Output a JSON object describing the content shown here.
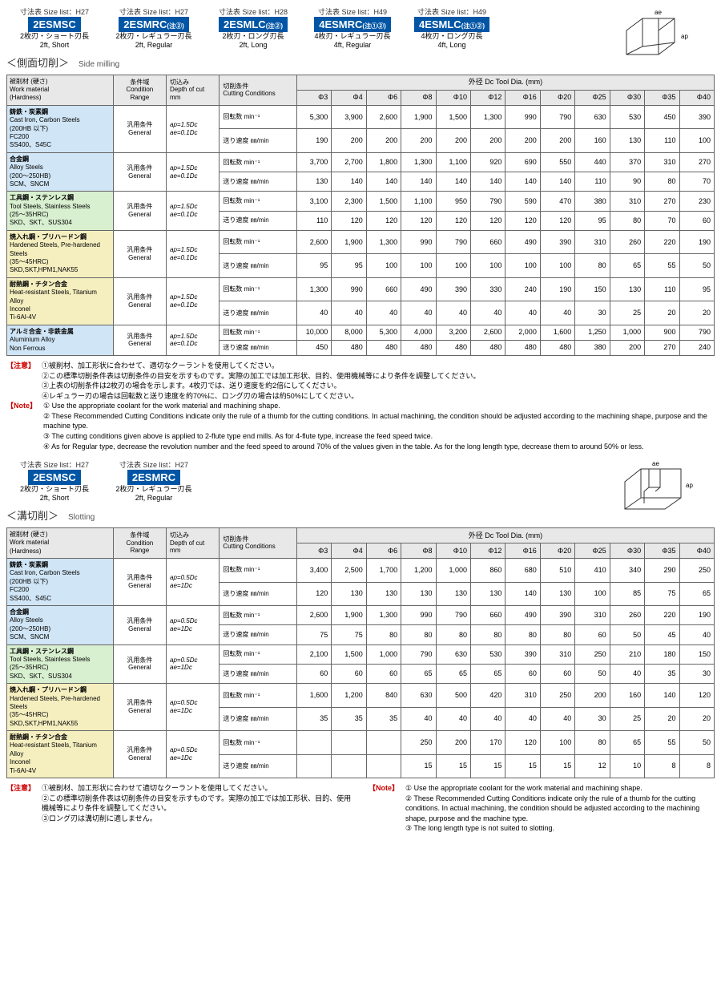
{
  "section1": {
    "title_jp": "＜側面切削＞",
    "title_en": "Side milling",
    "size_prefix": "寸法表 Size list：",
    "size_codes": [
      "H27",
      "H27",
      "H28",
      "H49",
      "H49"
    ],
    "tags": [
      "2ESMSC",
      "2ESMRC",
      "2ESMLC",
      "4ESMRC",
      "4ESMLC"
    ],
    "tag_notes": [
      "",
      "(注②)",
      "(注②)",
      "(注①②)",
      "(注①②)"
    ],
    "sub_jp": [
      "2枚刃・ショート刃長",
      "2枚刃・レギュラー刃長",
      "2枚刃・ロング刃長",
      "4枚刃・レギュラー刃長",
      "4枚刃・ロング刃長"
    ],
    "sub_en": [
      "2ft, Short",
      "2ft, Regular",
      "2ft, Long",
      "4ft, Regular",
      "4ft, Long"
    ],
    "diagram_labels": {
      "ae": "ae",
      "ap": "ap"
    }
  },
  "table_headers": {
    "material": "被削材 (硬さ)\nWork material\n(Hardness)",
    "condition": "条件域\nCondition Range",
    "depth": "切込み\nDepth of cut\nmm",
    "cutting": "切削条件\nCutting Conditions",
    "tooldia": "外径 Dc Tool Dia. (mm)",
    "diameters": [
      "Φ3",
      "Φ4",
      "Φ6",
      "Φ8",
      "Φ10",
      "Φ12",
      "Φ16",
      "Φ20",
      "Φ25",
      "Φ30",
      "Φ35",
      "Φ40"
    ]
  },
  "cond_general": {
    "jp": "汎用条件",
    "en": "General"
  },
  "depth1": {
    "ap": "ap=1.5Dc",
    "ae": "ae=0.1Dc"
  },
  "cutcond": {
    "rpm": "回転数 min⁻¹",
    "feed": "送り速度 ㎜/min"
  },
  "table1_rows": [
    {
      "mat_jp": "鋳鉄・炭素鋼",
      "mat_en": "Cast Iron, Carbon Steels",
      "mat_detail": "(200HB 以下)\nFC200\nSS400、S45C",
      "color": "blue",
      "rpm": [
        "5,300",
        "3,900",
        "2,600",
        "1,900",
        "1,500",
        "1,300",
        "990",
        "790",
        "630",
        "530",
        "450",
        "390"
      ],
      "feed": [
        "190",
        "200",
        "200",
        "200",
        "200",
        "200",
        "200",
        "200",
        "160",
        "130",
        "110",
        "100"
      ]
    },
    {
      "mat_jp": "合金鋼",
      "mat_en": "Alloy Steels",
      "mat_detail": "(200～250HB)\nSCM、SNCM",
      "color": "blue",
      "rpm": [
        "3,700",
        "2,700",
        "1,800",
        "1,300",
        "1,100",
        "920",
        "690",
        "550",
        "440",
        "370",
        "310",
        "270"
      ],
      "feed": [
        "130",
        "140",
        "140",
        "140",
        "140",
        "140",
        "140",
        "140",
        "110",
        "90",
        "80",
        "70"
      ]
    },
    {
      "mat_jp": "工具鋼・ステンレス鋼",
      "mat_en": "Tool Steels, Stainless Steels",
      "mat_detail": "(25～35HRC)\nSKD、SKT、SUS304",
      "color": "green",
      "rpm": [
        "3,100",
        "2,300",
        "1,500",
        "1,100",
        "950",
        "790",
        "590",
        "470",
        "380",
        "310",
        "270",
        "230"
      ],
      "feed": [
        "110",
        "120",
        "120",
        "120",
        "120",
        "120",
        "120",
        "120",
        "95",
        "80",
        "70",
        "60"
      ]
    },
    {
      "mat_jp": "焼入れ鋼・プリハードン鋼",
      "mat_en": "Hardened Steels,\nPre-hardened Steels",
      "mat_detail": "(35～45HRC)\nSKD,SKT,HPM1,NAK55",
      "color": "yellow",
      "rpm": [
        "2,600",
        "1,900",
        "1,300",
        "990",
        "790",
        "660",
        "490",
        "390",
        "310",
        "260",
        "220",
        "190"
      ],
      "feed": [
        "95",
        "95",
        "100",
        "100",
        "100",
        "100",
        "100",
        "100",
        "80",
        "65",
        "55",
        "50"
      ]
    },
    {
      "mat_jp": "耐熱鋼・チタン合金",
      "mat_en": "Heat-resistant Steels,\nTitanium Alloy",
      "mat_detail": "Inconel\nTi-6Al-4V",
      "color": "yellow",
      "rpm": [
        "1,300",
        "990",
        "660",
        "490",
        "390",
        "330",
        "240",
        "190",
        "150",
        "130",
        "110",
        "95"
      ],
      "feed": [
        "40",
        "40",
        "40",
        "40",
        "40",
        "40",
        "40",
        "40",
        "30",
        "25",
        "20",
        "20"
      ]
    },
    {
      "mat_jp": "アルミ合金・非鉄金属",
      "mat_en": "Aluminium Alloy",
      "mat_detail": "Non Ferrous",
      "color": "blue",
      "rpm": [
        "10,000",
        "8,000",
        "5,300",
        "4,000",
        "3,200",
        "2,600",
        "2,000",
        "1,600",
        "1,250",
        "1,000",
        "900",
        "790"
      ],
      "feed": [
        "450",
        "480",
        "480",
        "480",
        "480",
        "480",
        "480",
        "480",
        "380",
        "200",
        "270",
        "240"
      ]
    }
  ],
  "notes1_jp_label": "【注意】",
  "notes1_jp": [
    "①被削材、加工形状に合わせて、適切なクーラントを使用してください。",
    "②この標準切削条件表は切削条件の目安を示すものです。実際の加工では加工形状、目的、使用機械等により条件を調整してください。",
    "③上表の切削条件は2枚刃の場合を示します。4枚刃では、送り速度を約2倍にしてください。",
    "④レギュラー刃の場合は回転数と送り速度を約70%に、ロング刃の場合は約50%にしてください。"
  ],
  "notes1_en_label": "【Note】",
  "notes1_en": [
    "① Use the appropriate coolant for the work material and machining shape.",
    "② These Recommended Cutting Conditions indicate only the rule of a thumb for the cutting conditions. In actual machining, the condition should be adjusted according to the machining shape, purpose and the machine type.",
    "③ The cutting conditions given above is applied to 2-flute type end mills. As for 4-flute type, increase the feed speed twice.",
    "④ As for Regular type, decrease the revolution number and the feed speed to around 70% of the values given in the table. As for the long length type, decrease them to around 50% or less."
  ],
  "section2": {
    "title_jp": "＜溝切削＞",
    "title_en": "Slotting",
    "size_codes": [
      "H27",
      "H27"
    ],
    "tags": [
      "2ESMSC",
      "2ESMRC"
    ],
    "tag_notes": [
      "",
      ""
    ],
    "sub_jp": [
      "2枚刃・ショート刃長",
      "2枚刃・レギュラー刃長"
    ],
    "sub_en": [
      "2ft, Short",
      "2ft, Regular"
    ]
  },
  "depth2": {
    "ap": "ap=0.5Dc",
    "ae": "ae=1Dc"
  },
  "table2_rows": [
    {
      "mat_jp": "鋳鉄・炭素鋼",
      "mat_en": "Cast Iron, Carbon Steels",
      "mat_detail": "(200HB 以下)\nFC200\nSS400、S45C",
      "color": "blue",
      "rpm": [
        "3,400",
        "2,500",
        "1,700",
        "1,200",
        "1,000",
        "860",
        "680",
        "510",
        "410",
        "340",
        "290",
        "250"
      ],
      "feed": [
        "120",
        "130",
        "130",
        "130",
        "130",
        "130",
        "140",
        "130",
        "100",
        "85",
        "75",
        "65"
      ]
    },
    {
      "mat_jp": "合金鋼",
      "mat_en": "Alloy Steels",
      "mat_detail": "(200～250HB)\nSCM、SNCM",
      "color": "blue",
      "rpm": [
        "2,600",
        "1,900",
        "1,300",
        "990",
        "790",
        "660",
        "490",
        "390",
        "310",
        "260",
        "220",
        "190"
      ],
      "feed": [
        "75",
        "75",
        "80",
        "80",
        "80",
        "80",
        "80",
        "80",
        "60",
        "50",
        "45",
        "40"
      ]
    },
    {
      "mat_jp": "工具鋼・ステンレス鋼",
      "mat_en": "Tool Steels, Stainless Steels",
      "mat_detail": "(25～35HRC)\nSKD、SKT、SUS304",
      "color": "green",
      "rpm": [
        "2,100",
        "1,500",
        "1,000",
        "790",
        "630",
        "530",
        "390",
        "310",
        "250",
        "210",
        "180",
        "150"
      ],
      "feed": [
        "60",
        "60",
        "60",
        "65",
        "65",
        "65",
        "60",
        "60",
        "50",
        "40",
        "35",
        "30"
      ]
    },
    {
      "mat_jp": "焼入れ鋼・プリハードン鋼",
      "mat_en": "Hardened Steels,\nPre-hardened Steels",
      "mat_detail": "(35～45HRC)\nSKD,SKT,HPM1,NAK55",
      "color": "yellow",
      "rpm": [
        "1,600",
        "1,200",
        "840",
        "630",
        "500",
        "420",
        "310",
        "250",
        "200",
        "160",
        "140",
        "120"
      ],
      "feed": [
        "35",
        "35",
        "35",
        "40",
        "40",
        "40",
        "40",
        "40",
        "30",
        "25",
        "20",
        "20"
      ]
    },
    {
      "mat_jp": "耐熱鋼・チタン合金",
      "mat_en": "Heat-resistant Steels,\nTitanium Alloy",
      "mat_detail": "Inconel\nTi-6Al-4V",
      "color": "yellow",
      "rpm": [
        "",
        "",
        "",
        "250",
        "200",
        "170",
        "120",
        "100",
        "80",
        "65",
        "55",
        "50"
      ],
      "feed": [
        "",
        "",
        "",
        "15",
        "15",
        "15",
        "15",
        "15",
        "12",
        "10",
        "8",
        "8"
      ]
    }
  ],
  "notes2_jp": [
    "①被削材、加工形状に合わせて適切なクーラントを使用してください。",
    "②この標準切削条件表は切削条件の目安を示すものです。実際の加工では加工形状、目的、使用機械等により条件を調整してください。",
    "③ロング刃は溝切削に適しません。"
  ],
  "notes2_en": [
    "① Use the appropriate coolant for the work material and machining shape.",
    "② These Recommended Cutting Conditions indicate only the rule of a thumb for the cutting conditions. In actual machining, the condition should be adjusted according to the machining shape, purpose and the machine type.",
    "③ The long length type is not suited to slotting."
  ],
  "colors": {
    "blue": "#d0e5f5",
    "green": "#d8f0d0",
    "yellow": "#f5efc0",
    "tag": "#0055a5",
    "note_red": "#cc0000"
  }
}
